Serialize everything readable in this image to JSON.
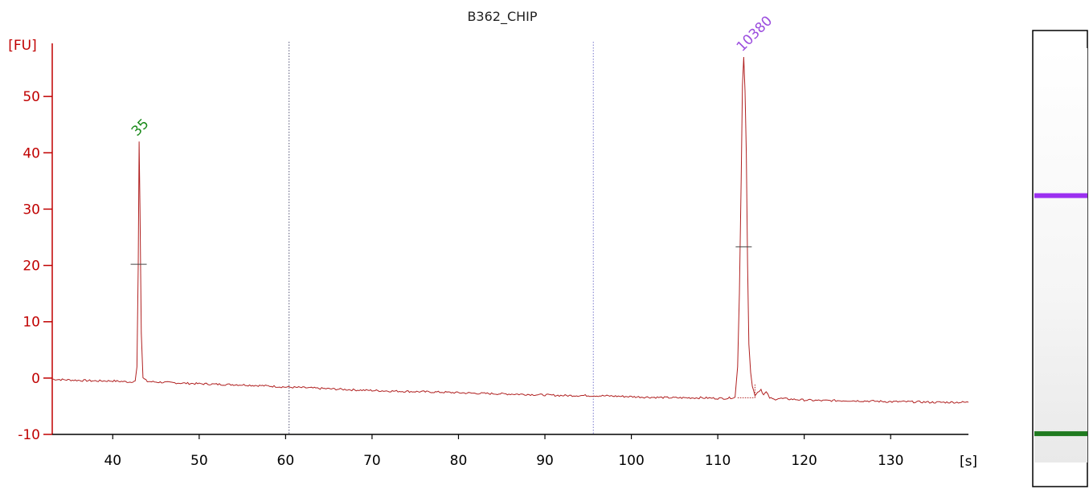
{
  "chart_data": {
    "type": "line",
    "title": "B362_CHIP",
    "ylabel": "[FU]",
    "xlabel": "[s]",
    "xlim": [
      33,
      139
    ],
    "ylim": [
      -10,
      60
    ],
    "xticks": [
      40,
      50,
      60,
      70,
      80,
      90,
      100,
      110,
      120,
      130
    ],
    "yticks": [
      -10,
      0,
      10,
      20,
      30,
      40,
      50
    ],
    "grid": false,
    "vlines": [
      60.4,
      95.6
    ],
    "series": [
      {
        "color": "#b02020",
        "x": [
          33,
          36,
          38,
          40,
          41,
          42,
          42.6,
          42.8,
          42.95,
          43.05,
          43.15,
          43.3,
          43.5,
          44,
          45,
          48,
          50,
          52,
          55,
          58,
          60,
          62,
          65,
          68,
          70,
          72,
          75,
          78,
          80,
          82,
          85,
          88,
          90,
          92,
          95,
          98,
          100,
          102,
          105,
          108,
          110,
          111,
          112,
          112.3,
          112.5,
          112.7,
          112.85,
          113.0,
          113.15,
          113.3,
          113.45,
          113.6,
          113.8,
          114.0,
          114.3,
          114.6,
          115.0,
          115.3,
          115.6,
          116.0,
          116.5,
          117,
          118,
          120,
          122,
          125,
          128,
          130,
          132,
          135,
          138,
          139
        ],
        "y": [
          -0.2,
          -0.4,
          -0.5,
          -0.5,
          -0.6,
          -0.7,
          -0.5,
          2,
          20,
          42,
          30,
          8,
          0,
          -0.6,
          -0.7,
          -0.9,
          -1.0,
          -1.1,
          -1.2,
          -1.4,
          -1.6,
          -1.7,
          -1.9,
          -2.1,
          -2.2,
          -2.3,
          -2.4,
          -2.5,
          -2.6,
          -2.7,
          -2.8,
          -2.9,
          -3.0,
          -3.1,
          -3.1,
          -3.2,
          -3.3,
          -3.4,
          -3.5,
          -3.5,
          -3.6,
          -3.6,
          -3.4,
          2,
          15,
          35,
          52,
          57,
          51,
          40,
          20,
          6,
          1,
          -1.5,
          -3,
          -2.5,
          -2,
          -3,
          -2.5,
          -3.5,
          -3.8,
          -3.6,
          -3.7,
          -3.9,
          -4.0,
          -4.0,
          -4.1,
          -4.2,
          -4.2,
          -4.3,
          -4.3,
          -4.3
        ]
      }
    ],
    "peaks": [
      {
        "label": "35",
        "x": 43.0,
        "y": 42,
        "color": "#1a8a1a",
        "half_height": 20.2
      },
      {
        "label": "10380",
        "x": 113.0,
        "y": 57,
        "color": "#9b4dde",
        "half_height": 23.3
      }
    ]
  },
  "gel": {
    "bands": [
      {
        "color": "#9b30f0",
        "position": 0.362
      },
      {
        "color": "#1f7a1f",
        "position": 0.884
      }
    ]
  }
}
